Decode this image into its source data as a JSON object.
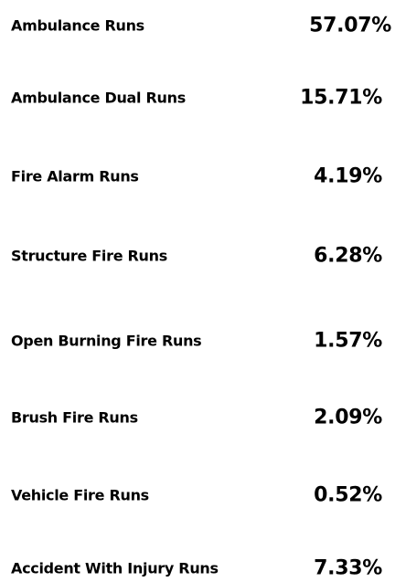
{
  "rows": [
    {
      "label": "Ambulance Runs",
      "value": "57.07%"
    },
    {
      "label": "Ambulance Dual Runs",
      "value": "15.71%"
    },
    {
      "label": "Fire Alarm Runs",
      "value": "4.19%"
    },
    {
      "label": "Structure Fire Runs",
      "value": "6.28%"
    },
    {
      "label": "Open Burning Fire Runs",
      "value": "1.57%"
    },
    {
      "label": "Brush Fire Runs",
      "value": "2.09%"
    },
    {
      "label": "Vehicle Fire Runs",
      "value": "0.52%"
    },
    {
      "label": "Accident With Injury Runs",
      "value": "7.33%"
    }
  ]
}
